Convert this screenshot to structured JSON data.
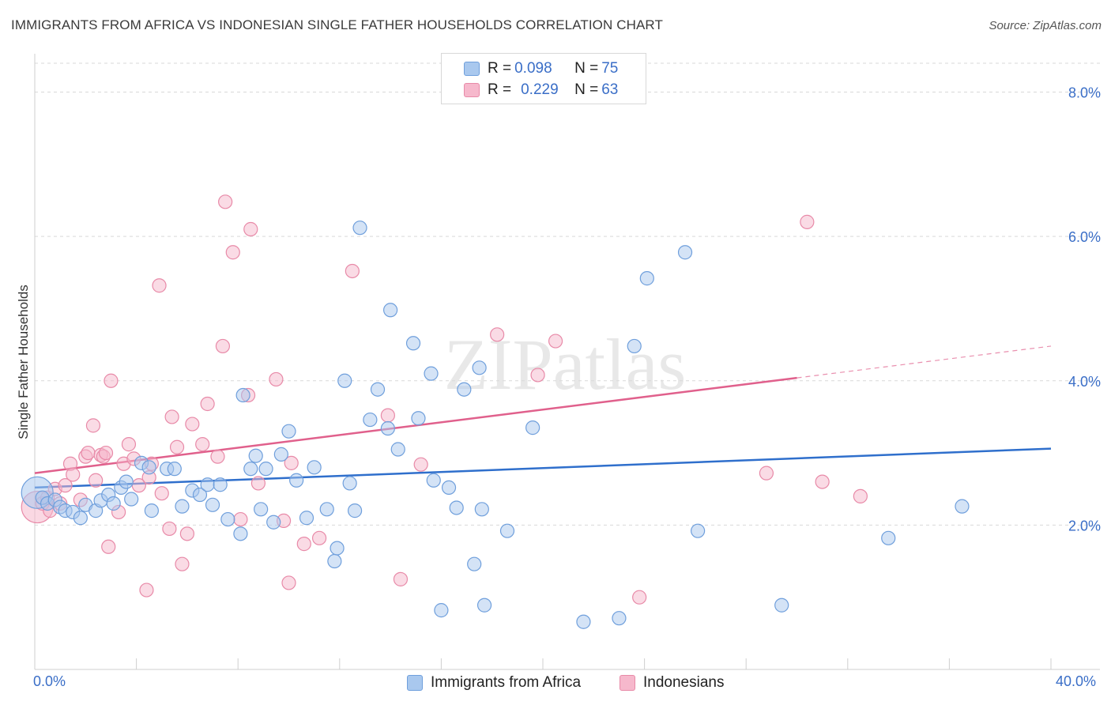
{
  "title": "IMMIGRANTS FROM AFRICA VS INDONESIAN SINGLE FATHER HOUSEHOLDS CORRELATION CHART",
  "source": "Source: ZipAtlas.com",
  "watermark": "ZIPatlas",
  "legend": {
    "rows": [
      {
        "r_label": "R = ",
        "r_value": "0.098",
        "n_label": "N = ",
        "n_value": "75"
      },
      {
        "r_label": "R = ",
        "r_value": "0.229",
        "n_label": "N = ",
        "n_value": "63"
      }
    ]
  },
  "colors": {
    "blue_fill": "#a9c8ee",
    "blue_stroke": "#6f9fdc",
    "blue_line": "#2f6fcc",
    "pink_fill": "#f6b8cc",
    "pink_stroke": "#e88aa8",
    "pink_line": "#e0608c",
    "tick_text": "#3a6ec7",
    "grid": "#d9d9d9"
  },
  "chart_data": {
    "type": "scatter",
    "title": "IMMIGRANTS FROM AFRICA VS INDONESIAN SINGLE FATHER HOUSEHOLDS CORRELATION CHART",
    "xlabel": "",
    "ylabel": "Single Father Households",
    "xlim": [
      0,
      40
    ],
    "ylim": [
      0,
      8.4
    ],
    "x_tick_labels": [
      "0.0%",
      "40.0%"
    ],
    "y_tick_labels": [
      "2.0%",
      "4.0%",
      "6.0%",
      "8.0%"
    ],
    "y_ticks": [
      2,
      4,
      6,
      8
    ],
    "grid": true,
    "legend_position": "top-center",
    "series": [
      {
        "name": "Immigrants from Africa",
        "color": "#6f9fdc",
        "trend": {
          "x": [
            0,
            40
          ],
          "y": [
            2.52,
            3.06
          ]
        },
        "points": [
          [
            0.1,
            2.45
          ],
          [
            0.3,
            2.38
          ],
          [
            0.5,
            2.3
          ],
          [
            0.8,
            2.35
          ],
          [
            1.0,
            2.25
          ],
          [
            1.2,
            2.2
          ],
          [
            1.5,
            2.18
          ],
          [
            1.8,
            2.1
          ],
          [
            2.0,
            2.28
          ],
          [
            2.4,
            2.2
          ],
          [
            2.6,
            2.34
          ],
          [
            2.9,
            2.42
          ],
          [
            3.1,
            2.3
          ],
          [
            3.4,
            2.52
          ],
          [
            3.6,
            2.6
          ],
          [
            3.8,
            2.36
          ],
          [
            4.2,
            2.86
          ],
          [
            4.5,
            2.8
          ],
          [
            4.6,
            2.2
          ],
          [
            5.2,
            2.78
          ],
          [
            5.5,
            2.78
          ],
          [
            5.8,
            2.26
          ],
          [
            6.2,
            2.48
          ],
          [
            6.5,
            2.42
          ],
          [
            6.8,
            2.56
          ],
          [
            7.0,
            2.28
          ],
          [
            7.3,
            2.56
          ],
          [
            7.6,
            2.08
          ],
          [
            8.1,
            1.88
          ],
          [
            8.2,
            3.8
          ],
          [
            8.5,
            2.78
          ],
          [
            8.7,
            2.96
          ],
          [
            8.9,
            2.22
          ],
          [
            9.1,
            2.78
          ],
          [
            9.4,
            2.04
          ],
          [
            9.7,
            2.98
          ],
          [
            10.0,
            3.3
          ],
          [
            10.3,
            2.62
          ],
          [
            10.7,
            2.1
          ],
          [
            11.0,
            2.8
          ],
          [
            11.5,
            2.22
          ],
          [
            11.8,
            1.5
          ],
          [
            11.9,
            1.68
          ],
          [
            12.2,
            4.0
          ],
          [
            12.4,
            2.58
          ],
          [
            12.6,
            2.2
          ],
          [
            12.8,
            6.12
          ],
          [
            13.2,
            3.46
          ],
          [
            13.5,
            3.88
          ],
          [
            13.9,
            3.34
          ],
          [
            14.0,
            4.98
          ],
          [
            14.3,
            3.05
          ],
          [
            14.9,
            4.52
          ],
          [
            15.1,
            3.48
          ],
          [
            15.6,
            4.1
          ],
          [
            15.7,
            2.62
          ],
          [
            16.0,
            0.82
          ],
          [
            16.3,
            2.52
          ],
          [
            16.6,
            2.24
          ],
          [
            16.9,
            3.88
          ],
          [
            17.3,
            1.46
          ],
          [
            17.5,
            4.18
          ],
          [
            17.6,
            2.22
          ],
          [
            17.7,
            0.89
          ],
          [
            18.6,
            1.92
          ],
          [
            19.6,
            3.35
          ],
          [
            21.6,
            0.66
          ],
          [
            23.0,
            0.71
          ],
          [
            23.6,
            4.48
          ],
          [
            24.1,
            5.42
          ],
          [
            25.6,
            5.78
          ],
          [
            26.1,
            1.92
          ],
          [
            29.4,
            0.89
          ],
          [
            33.6,
            1.82
          ],
          [
            36.5,
            2.26
          ]
        ]
      },
      {
        "name": "Indonesians",
        "color": "#e88aa8",
        "trend": {
          "x": [
            0,
            30
          ],
          "y": [
            2.72,
            4.04
          ],
          "dashed_extension": {
            "x": [
              30,
              40
            ],
            "y": [
              4.04,
              4.48
            ]
          }
        },
        "points": [
          [
            0.1,
            2.25
          ],
          [
            0.3,
            2.3
          ],
          [
            0.5,
            2.38
          ],
          [
            0.6,
            2.2
          ],
          [
            0.8,
            2.5
          ],
          [
            1.0,
            2.3
          ],
          [
            1.2,
            2.55
          ],
          [
            1.4,
            2.85
          ],
          [
            1.5,
            2.7
          ],
          [
            1.8,
            2.35
          ],
          [
            2.0,
            2.95
          ],
          [
            2.1,
            3.0
          ],
          [
            2.3,
            3.38
          ],
          [
            2.4,
            2.62
          ],
          [
            2.6,
            2.97
          ],
          [
            2.7,
            2.95
          ],
          [
            2.8,
            3.0
          ],
          [
            2.9,
            1.7
          ],
          [
            3.0,
            4.0
          ],
          [
            3.3,
            2.18
          ],
          [
            3.5,
            2.85
          ],
          [
            3.7,
            3.12
          ],
          [
            3.9,
            2.92
          ],
          [
            4.1,
            2.55
          ],
          [
            4.4,
            1.1
          ],
          [
            4.5,
            2.66
          ],
          [
            4.6,
            2.85
          ],
          [
            4.9,
            5.32
          ],
          [
            5.0,
            2.44
          ],
          [
            5.3,
            1.95
          ],
          [
            5.4,
            3.5
          ],
          [
            5.6,
            3.08
          ],
          [
            5.8,
            1.46
          ],
          [
            6.0,
            1.88
          ],
          [
            6.2,
            3.4
          ],
          [
            6.6,
            3.12
          ],
          [
            6.8,
            3.68
          ],
          [
            7.2,
            2.95
          ],
          [
            7.4,
            4.48
          ],
          [
            7.5,
            6.48
          ],
          [
            7.8,
            5.78
          ],
          [
            8.1,
            2.08
          ],
          [
            8.4,
            3.8
          ],
          [
            8.5,
            6.1
          ],
          [
            8.8,
            2.58
          ],
          [
            9.5,
            4.02
          ],
          [
            9.8,
            2.06
          ],
          [
            10.0,
            1.2
          ],
          [
            10.1,
            2.86
          ],
          [
            10.6,
            1.74
          ],
          [
            11.2,
            1.82
          ],
          [
            12.5,
            5.52
          ],
          [
            13.9,
            3.52
          ],
          [
            14.4,
            1.25
          ],
          [
            15.2,
            2.84
          ],
          [
            18.2,
            4.64
          ],
          [
            19.8,
            4.08
          ],
          [
            20.5,
            4.55
          ],
          [
            23.8,
            1.0
          ],
          [
            28.8,
            2.72
          ],
          [
            30.4,
            6.2
          ],
          [
            31.0,
            2.6
          ],
          [
            32.5,
            2.4
          ]
        ]
      }
    ]
  }
}
